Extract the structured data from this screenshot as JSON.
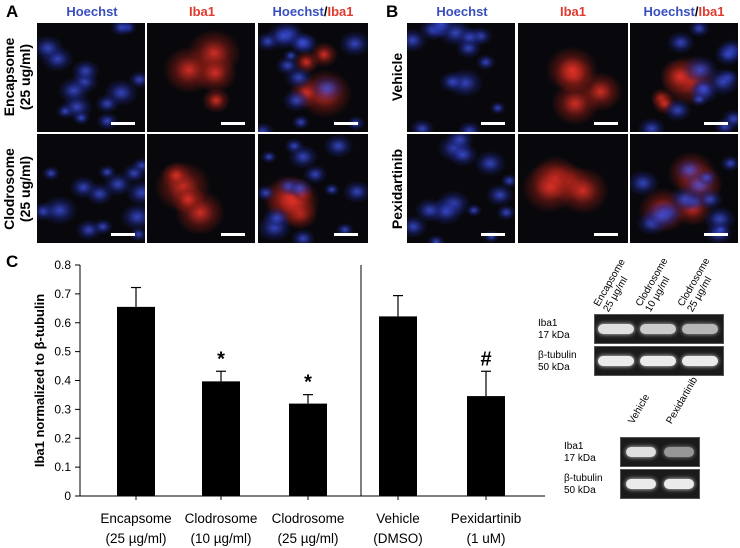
{
  "panels": {
    "A": {
      "letter": "A",
      "columns": [
        {
          "parts": [
            {
              "text": "Hoechst",
              "color": "#3a4fbf"
            }
          ]
        },
        {
          "parts": [
            {
              "text": "Iba1",
              "color": "#e03a2e"
            }
          ]
        },
        {
          "parts": [
            {
              "text": "Hoechst",
              "color": "#3a4fbf"
            },
            {
              "text": "/",
              "color": "#000000"
            },
            {
              "text": "Iba1",
              "color": "#e03a2e"
            }
          ]
        }
      ],
      "rows": [
        {
          "label": "Encapsome\n(25 ug/ml)"
        },
        {
          "label": "Clodrosome\n(25 ug/ml)"
        }
      ]
    },
    "B": {
      "letter": "B",
      "columns": [
        {
          "parts": [
            {
              "text": "Hoechst",
              "color": "#3a4fbf"
            }
          ]
        },
        {
          "parts": [
            {
              "text": "Iba1",
              "color": "#e03a2e"
            }
          ]
        },
        {
          "parts": [
            {
              "text": "Hoechst",
              "color": "#3a4fbf"
            },
            {
              "text": "/",
              "color": "#000000"
            },
            {
              "text": "Iba1",
              "color": "#e03a2e"
            }
          ]
        }
      ],
      "rows": [
        {
          "label": "Vehicle"
        },
        {
          "label": "Pexidartinib"
        }
      ]
    },
    "C": {
      "letter": "C"
    }
  },
  "chart_data": {
    "type": "bar",
    "categories": [
      "Encapsome\n(25 µg/ml)",
      "Clodrosome\n(10 µg/ml)",
      "Clodrosome\n(25 µg/ml)",
      "Vehicle\n(DMSO)",
      "Pexidartinib\n(1 uM)"
    ],
    "values": [
      0.655,
      0.397,
      0.32,
      0.622,
      0.346
    ],
    "errors": [
      0.067,
      0.035,
      0.031,
      0.072,
      0.086
    ],
    "significance": [
      "",
      "*",
      "*",
      "",
      "#"
    ],
    "ylabel": "Iba1 normalized to  β-tubulin",
    "ylim": [
      0,
      0.8
    ],
    "yticks": [
      "0",
      "0.1",
      "0.2",
      "0.3",
      "0.4",
      "0.5",
      "0.6",
      "0.7",
      "0.8"
    ],
    "bar_color": "#000000",
    "separator_after_index": 2
  },
  "blot1": {
    "lanes": [
      "Encapsome\n25 µg/ml",
      "Clodrosome\n10 µg/ml",
      "Clodrosome\n25 µg/ml"
    ],
    "rows": [
      {
        "label": "Iba1\n17 kDa"
      },
      {
        "label": "β-tubulin\n50 kDa"
      }
    ]
  },
  "blot2": {
    "lanes": [
      "Vehicle",
      "Pexidartinib"
    ],
    "rows": [
      {
        "label": "Iba1\n17 kDa"
      },
      {
        "label": "β-tubulin\n50 kDa"
      }
    ]
  }
}
